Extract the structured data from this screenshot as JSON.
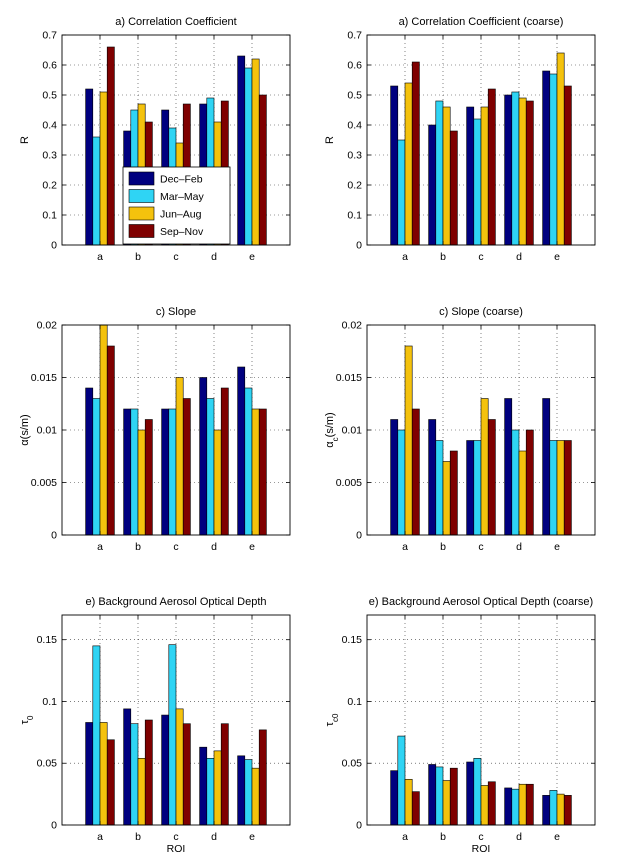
{
  "chart_data": [
    {
      "type": "bar",
      "title": "a) Correlation Coefficient",
      "xlabel": "",
      "ylabel": "R",
      "ylim": [
        0,
        0.7
      ],
      "yticks": [
        "0",
        "0.1",
        "0.2",
        "0.3",
        "0.4",
        "0.5",
        "0.6",
        "0.7"
      ],
      "grid": true,
      "categories": [
        "a",
        "b",
        "c",
        "d",
        "e"
      ],
      "series": [
        {
          "name": "Dec–Feb",
          "color": "#00007f",
          "values": [
            0.52,
            0.38,
            0.45,
            0.47,
            0.63
          ]
        },
        {
          "name": "Mar–May",
          "color": "#2fd4f4",
          "values": [
            0.36,
            0.45,
            0.39,
            0.49,
            0.59
          ]
        },
        {
          "name": "Jun–Aug",
          "color": "#f4c20d",
          "values": [
            0.51,
            0.47,
            0.34,
            0.41,
            0.62
          ]
        },
        {
          "name": "Sep–Nov",
          "color": "#7f0000",
          "values": [
            0.66,
            0.41,
            0.47,
            0.48,
            0.5
          ]
        }
      ],
      "legend": "bottom-center"
    },
    {
      "type": "bar",
      "title": "a) Correlation Coefficient (coarse)",
      "xlabel": "",
      "ylabel": "R",
      "ylim": [
        0,
        0.7
      ],
      "yticks": [
        "0",
        "0.1",
        "0.2",
        "0.3",
        "0.4",
        "0.5",
        "0.6",
        "0.7"
      ],
      "grid": true,
      "categories": [
        "a",
        "b",
        "c",
        "d",
        "e"
      ],
      "series": [
        {
          "color": "#00007f",
          "values": [
            0.53,
            0.4,
            0.46,
            0.5,
            0.58
          ]
        },
        {
          "color": "#2fd4f4",
          "values": [
            0.35,
            0.48,
            0.42,
            0.51,
            0.57
          ]
        },
        {
          "color": "#f4c20d",
          "values": [
            0.54,
            0.46,
            0.46,
            0.49,
            0.64
          ]
        },
        {
          "color": "#7f0000",
          "values": [
            0.61,
            0.38,
            0.52,
            0.48,
            0.53
          ]
        }
      ]
    },
    {
      "type": "bar",
      "title": "c) Slope",
      "xlabel": "",
      "ylabel": "α(s/m)",
      "ylim": [
        0,
        0.02
      ],
      "yticks": [
        "0",
        "0.005",
        "0.01",
        "0.015",
        "0.02"
      ],
      "grid": true,
      "categories": [
        "a",
        "b",
        "c",
        "d",
        "e"
      ],
      "series": [
        {
          "color": "#00007f",
          "values": [
            0.014,
            0.012,
            0.012,
            0.015,
            0.016
          ]
        },
        {
          "color": "#2fd4f4",
          "values": [
            0.013,
            0.012,
            0.012,
            0.013,
            0.014
          ]
        },
        {
          "color": "#f4c20d",
          "values": [
            0.02,
            0.01,
            0.015,
            0.01,
            0.012
          ]
        },
        {
          "color": "#7f0000",
          "values": [
            0.018,
            0.011,
            0.013,
            0.014,
            0.012
          ]
        }
      ]
    },
    {
      "type": "bar",
      "title": "c) Slope (coarse)",
      "xlabel": "",
      "ylabel": "α",
      "ylabel_sub": "c",
      "ylabel_suffix": "(s/m)",
      "ylim": [
        0,
        0.02
      ],
      "yticks": [
        "0",
        "0.005",
        "0.01",
        "0.015",
        "0.02"
      ],
      "grid": true,
      "categories": [
        "a",
        "b",
        "c",
        "d",
        "e"
      ],
      "series": [
        {
          "color": "#00007f",
          "values": [
            0.011,
            0.011,
            0.009,
            0.013,
            0.013
          ]
        },
        {
          "color": "#2fd4f4",
          "values": [
            0.01,
            0.009,
            0.009,
            0.01,
            0.009
          ]
        },
        {
          "color": "#f4c20d",
          "values": [
            0.018,
            0.007,
            0.013,
            0.008,
            0.009
          ]
        },
        {
          "color": "#7f0000",
          "values": [
            0.012,
            0.008,
            0.011,
            0.01,
            0.009
          ]
        }
      ]
    },
    {
      "type": "bar",
      "title": "e) Background Aerosol Optical Depth",
      "xlabel": "ROI",
      "ylabel": "τ",
      "ylabel_sub": "0",
      "ylim": [
        0,
        0.17
      ],
      "yticks": [
        "0",
        "0.05",
        "0.1",
        "0.15"
      ],
      "ytick_values": [
        0,
        0.05,
        0.1,
        0.15
      ],
      "grid": true,
      "categories": [
        "a",
        "b",
        "c",
        "d",
        "e"
      ],
      "series": [
        {
          "color": "#00007f",
          "values": [
            0.083,
            0.094,
            0.089,
            0.063,
            0.056
          ]
        },
        {
          "color": "#2fd4f4",
          "values": [
            0.145,
            0.082,
            0.146,
            0.054,
            0.053
          ]
        },
        {
          "color": "#f4c20d",
          "values": [
            0.083,
            0.054,
            0.094,
            0.06,
            0.046
          ]
        },
        {
          "color": "#7f0000",
          "values": [
            0.069,
            0.085,
            0.082,
            0.082,
            0.077
          ]
        }
      ]
    },
    {
      "type": "bar",
      "title": "e) Background Aerosol Optical Depth (coarse)",
      "xlabel": "ROI",
      "ylabel": "τ",
      "ylabel_sub": "c0",
      "ylim": [
        0,
        0.17
      ],
      "yticks": [
        "0",
        "0.05",
        "0.1",
        "0.15"
      ],
      "ytick_values": [
        0,
        0.05,
        0.1,
        0.15
      ],
      "grid": true,
      "categories": [
        "a",
        "b",
        "c",
        "d",
        "e"
      ],
      "series": [
        {
          "color": "#00007f",
          "values": [
            0.044,
            0.049,
            0.051,
            0.03,
            0.024
          ]
        },
        {
          "color": "#2fd4f4",
          "values": [
            0.072,
            0.047,
            0.054,
            0.029,
            0.028
          ]
        },
        {
          "color": "#f4c20d",
          "values": [
            0.037,
            0.036,
            0.032,
            0.033,
            0.025
          ]
        },
        {
          "color": "#7f0000",
          "values": [
            0.027,
            0.046,
            0.035,
            0.033,
            0.024
          ]
        }
      ]
    }
  ]
}
